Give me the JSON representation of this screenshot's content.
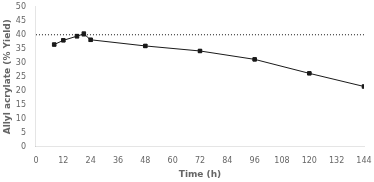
{
  "chart_data": {
    "type": "line",
    "xlabel": "Time (h)",
    "ylabel": "Allyl acrylate (% Yield)",
    "x": [
      8,
      12,
      18,
      21,
      24,
      48,
      72,
      96,
      120,
      144
    ],
    "values": [
      36.5,
      38.0,
      39.5,
      40.3,
      38.2,
      36.0,
      34.2,
      31.2,
      26.2,
      21.5
    ],
    "yerr": [
      0.4,
      0.4,
      0.6,
      0.7,
      0.5,
      0.5,
      0.4,
      0.3,
      0.3,
      0.3
    ],
    "color": "#1a1a1a",
    "marker": "square",
    "reference_lines": [
      {
        "y": 40.0,
        "color": "#1a1a1a",
        "line_style": "dotted"
      }
    ],
    "xlim": [
      0,
      144
    ],
    "ylim": [
      0,
      50
    ],
    "xticks": [
      0,
      12,
      24,
      36,
      48,
      60,
      72,
      84,
      96,
      108,
      120,
      132,
      144
    ],
    "yticks": [
      0,
      5,
      10,
      15,
      20,
      25,
      30,
      35,
      40,
      45,
      50
    ],
    "grid": false
  }
}
